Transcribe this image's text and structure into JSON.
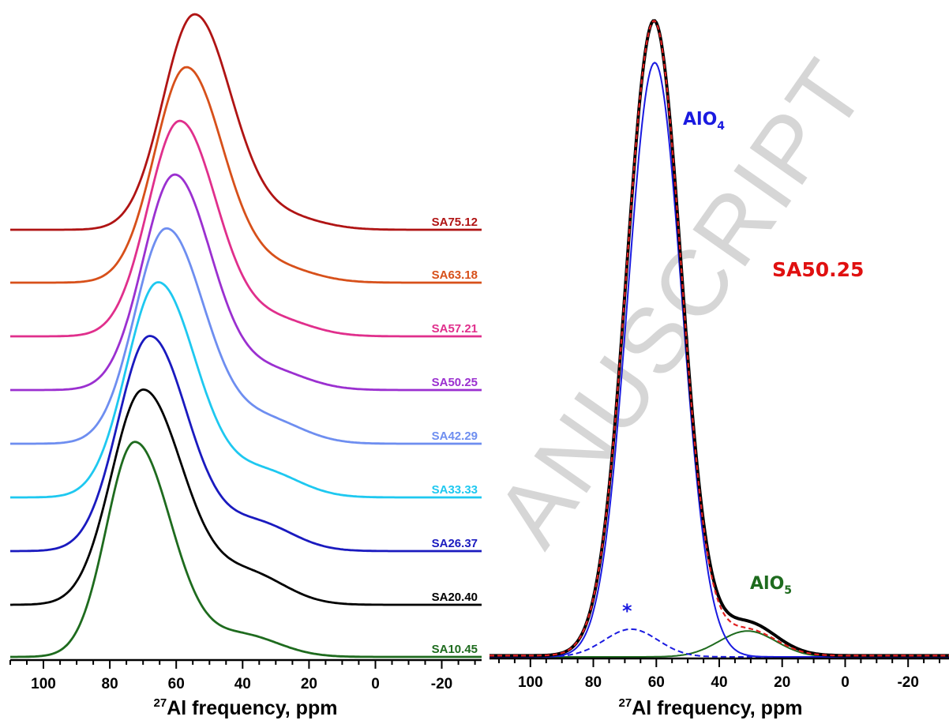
{
  "watermark": "ANUSCRIPT",
  "chart_data": [
    {
      "type": "line",
      "x_reversed": true,
      "xlim": [
        110,
        -32
      ],
      "xticks": [
        100,
        80,
        60,
        40,
        20,
        0,
        -20
      ],
      "xtick_labels": [
        "100",
        "80",
        "60",
        "40",
        "20",
        "0",
        "-20"
      ],
      "xlabel_sup": "27",
      "xlabel": "Al frequency, ppm",
      "series": [
        {
          "name": "SA75.12",
          "color": "#B01414",
          "peak_ppm": 54.5,
          "tail_ppm": 28,
          "tail_amp": 0.06,
          "wl": 9.5,
          "wr": 11
        },
        {
          "name": "SA63.18",
          "color": "#D7501A",
          "peak_ppm": 57,
          "tail_ppm": 30,
          "tail_amp": 0.07,
          "wl": 9.5,
          "wr": 11
        },
        {
          "name": "SA57.21",
          "color": "#E02F8C",
          "peak_ppm": 59,
          "tail_ppm": 31,
          "tail_amp": 0.08,
          "wl": 9.5,
          "wr": 11
        },
        {
          "name": "SA50.25",
          "color": "#9B30D0",
          "peak_ppm": 60.5,
          "tail_ppm": 32,
          "tail_amp": 0.09,
          "wl": 9.5,
          "wr": 11
        },
        {
          "name": "SA42.29",
          "color": "#6E8EF0",
          "peak_ppm": 63,
          "tail_ppm": 33,
          "tail_amp": 0.11,
          "wl": 9.5,
          "wr": 11.5
        },
        {
          "name": "SA33.33",
          "color": "#1EC8F0",
          "peak_ppm": 65.5,
          "tail_ppm": 34,
          "tail_amp": 0.12,
          "wl": 9.5,
          "wr": 11.5
        },
        {
          "name": "SA26.37",
          "color": "#1A1ABF",
          "peak_ppm": 68,
          "tail_ppm": 36,
          "tail_amp": 0.13,
          "wl": 9.5,
          "wr": 11.5
        },
        {
          "name": "SA20.40",
          "color": "#000000",
          "peak_ppm": 70,
          "tail_ppm": 38,
          "tail_amp": 0.14,
          "wl": 9.5,
          "wr": 12
        },
        {
          "name": "SA10.45",
          "color": "#1E6B1E",
          "peak_ppm": 72.5,
          "tail_ppm": 40,
          "tail_amp": 0.1,
          "wl": 8.5,
          "wr": 11
        }
      ]
    },
    {
      "type": "line",
      "x_reversed": true,
      "xlim": [
        113,
        -33
      ],
      "xticks": [
        100,
        80,
        60,
        40,
        20,
        0,
        -20
      ],
      "xtick_labels": [
        "100",
        "80",
        "60",
        "40",
        "20",
        "0",
        "-20"
      ],
      "xlabel_sup": "27",
      "xlabel": "Al frequency, ppm",
      "title": "SA50.25",
      "title_color": "#E01010",
      "annotations": [
        {
          "text": "AlO",
          "sub": "4",
          "color": "#1A1AE0"
        },
        {
          "text": "AlO",
          "sub": "5",
          "color": "#1E6B1E"
        },
        {
          "text": "*",
          "sub": "",
          "color": "#1A1AE0"
        }
      ],
      "components": [
        {
          "role": "AlO4",
          "center_ppm": 60.5,
          "width_ppm": 8.6,
          "amp": 1.0,
          "color": "#1A1AE0",
          "dash": "solid"
        },
        {
          "role": "spinning sideband",
          "center_ppm": 68,
          "width_ppm": 8.5,
          "amp": 0.045,
          "color": "#1A1AE0",
          "dash": "dashed"
        },
        {
          "role": "AlO5",
          "center_ppm": 31,
          "width_ppm": 9,
          "amp": 0.042,
          "color": "#1E6B1E",
          "dash": "solid"
        }
      ],
      "experimental": {
        "color": "#000000"
      },
      "fit": {
        "color": "#E02020"
      }
    }
  ]
}
